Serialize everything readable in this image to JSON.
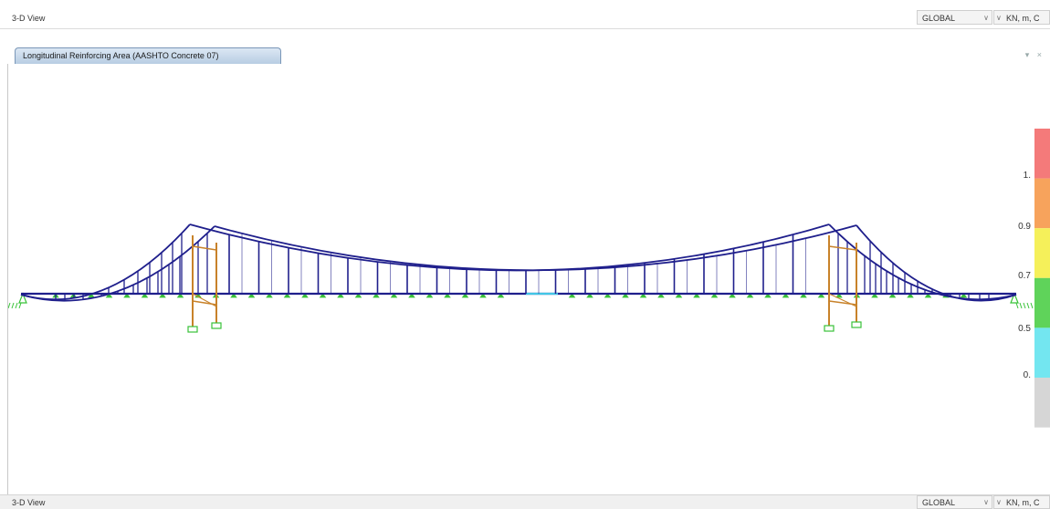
{
  "top_bar": {
    "view_label": "3-D View",
    "coord_system": "GLOBAL",
    "units": "KN, m, C"
  },
  "tab": {
    "title": "Longitudinal Reinforcing Area  (AASHTO Concrete 07)",
    "pane_controls": "▾ ×"
  },
  "legend": {
    "bands": [
      {
        "color": "#f47a7a"
      },
      {
        "color": "#f7a35c"
      },
      {
        "color": "#f5f05a"
      },
      {
        "color": "#5fd35a"
      },
      {
        "color": "#73e6f0"
      },
      {
        "color": "#d6d6d6"
      }
    ],
    "tick_labels": [
      "1.",
      "0.9",
      "0.7",
      "0.5",
      "0."
    ]
  },
  "model": {
    "member_color": "#1f1f8c",
    "tower_color": "#c8822a",
    "support_color": "#38c238",
    "deck_highlight_color": "#42c6e6"
  },
  "bottom_bar": {
    "view_label": "3-D View",
    "coord_system": "GLOBAL",
    "units": "KN, m, C"
  }
}
